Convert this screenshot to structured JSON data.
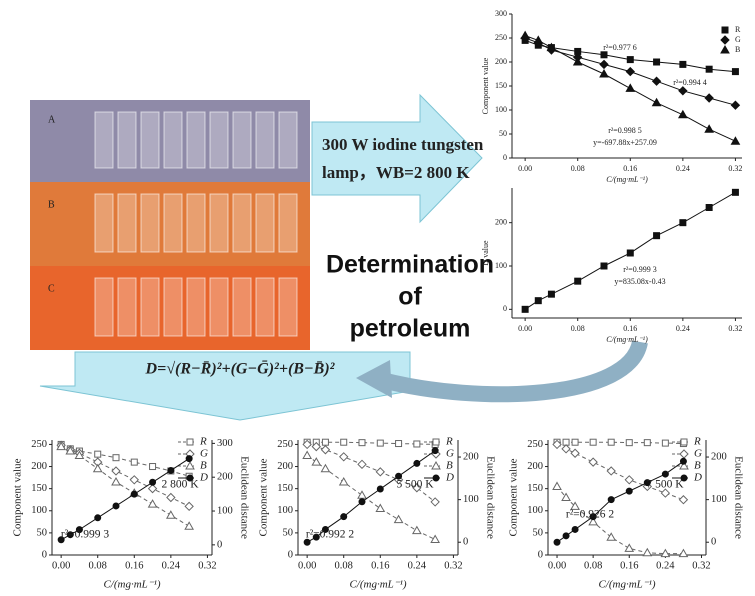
{
  "photo": {
    "labels": [
      "A",
      "B",
      "C"
    ]
  },
  "arrow_text": [
    "300 W iodine tungsten",
    "lamp，WB=2 800 K"
  ],
  "title_lines": [
    "Determination",
    "of",
    "petroleum"
  ],
  "formula": "D=√(R−R̄)²+(G−Ḡ)²+(B−B̄)²",
  "chart_data": [
    {
      "type": "scatter",
      "x_label": "C/(mg·mL⁻¹)",
      "y_label": "Component value",
      "x": [
        0,
        0.02,
        0.04,
        0.08,
        0.12,
        0.16,
        0.2,
        0.24,
        0.28,
        0.32
      ],
      "xlim": [
        -0.02,
        0.33
      ],
      "xticks": [
        {
          "value": 0,
          "label": "0.00"
        },
        0.08,
        0.16,
        0.24,
        0.32
      ],
      "ylim": [
        0,
        300
      ],
      "yticks": [
        0,
        50,
        100,
        150,
        200,
        250,
        300
      ],
      "series": [
        {
          "name": "R",
          "color": "#111",
          "marker": "square",
          "values": [
            245,
            235,
            230,
            222,
            215,
            205,
            200,
            195,
            185,
            180
          ]
        },
        {
          "name": "G",
          "color": "#111",
          "marker": "diamond",
          "values": [
            250,
            240,
            225,
            210,
            195,
            180,
            160,
            140,
            125,
            110
          ]
        },
        {
          "name": "B",
          "color": "#111",
          "marker": "triangle",
          "values": [
            255,
            245,
            230,
            200,
            175,
            145,
            115,
            90,
            60,
            35
          ]
        }
      ],
      "annotations": [
        "r²=0.977 6",
        "r²=0.994 4",
        "r²=0.998 5",
        "y=-697.88x+257.09"
      ]
    },
    {
      "type": "scatter",
      "x_label": "C/(mg·mL⁻¹)",
      "y_label": "D value",
      "x": [
        0,
        0.02,
        0.04,
        0.08,
        0.12,
        0.16,
        0.2,
        0.24,
        0.28,
        0.32
      ],
      "xlim": [
        -0.02,
        0.33
      ],
      "xticks": [
        {
          "value": 0,
          "label": "0.00"
        },
        0.08,
        0.16,
        0.24,
        0.32
      ],
      "ylim": [
        -20,
        280
      ],
      "yticks": [
        0,
        100,
        200
      ],
      "series": [
        {
          "name": "D",
          "color": "#111",
          "marker": "square",
          "values": [
            0,
            20,
            35,
            65,
            100,
            130,
            170,
            200,
            235,
            270
          ]
        }
      ],
      "annotations": [
        "r²=0.999 3",
        "y=835.08x-0.43"
      ]
    },
    {
      "type": "scatter",
      "x_label": "C/(mg·mL⁻¹)",
      "y_label": "Component value",
      "y2_label": "Euclidean distance",
      "x": [
        0,
        0.02,
        0.04,
        0.08,
        0.12,
        0.16,
        0.2,
        0.24,
        0.28
      ],
      "xlim": [
        -0.02,
        0.33
      ],
      "xticks": [
        {
          "value": 0,
          "label": "0.00"
        },
        0.08,
        0.16,
        0.24,
        0.32
      ],
      "ylim": [
        0,
        260
      ],
      "yticks": [
        0,
        50,
        100,
        150,
        200,
        250
      ],
      "y2lim": [
        -30,
        310
      ],
      "y2ticks": [
        0,
        100,
        200,
        300
      ],
      "series": [
        {
          "name": "R",
          "color": "#666",
          "marker": "square",
          "dashed": true,
          "values": [
            250,
            240,
            235,
            228,
            220,
            210,
            200,
            190,
            178
          ]
        },
        {
          "name": "G",
          "color": "#666",
          "marker": "diamond",
          "dashed": true,
          "values": [
            248,
            238,
            230,
            210,
            190,
            170,
            150,
            130,
            110
          ]
        },
        {
          "name": "B",
          "color": "#666",
          "marker": "triangle",
          "dashed": true,
          "values": [
            245,
            235,
            225,
            195,
            165,
            140,
            115,
            90,
            65
          ]
        },
        {
          "name": "D",
          "color": "#111",
          "marker": "circle",
          "axis": "y2",
          "values": [
            15,
            30,
            45,
            80,
            115,
            150,
            185,
            220,
            255
          ]
        }
      ],
      "annotations": [
        "2 800 K",
        "r²=0.999 3"
      ]
    },
    {
      "type": "scatter",
      "x_label": "C/(mg·mL⁻¹)",
      "y_label": "Component value",
      "y2_label": "Euclidean distance",
      "x": [
        0,
        0.02,
        0.04,
        0.08,
        0.12,
        0.16,
        0.2,
        0.24,
        0.28
      ],
      "xlim": [
        -0.02,
        0.33
      ],
      "xticks": [
        {
          "value": 0,
          "label": "0.00"
        },
        0.08,
        0.16,
        0.24,
        0.32
      ],
      "ylim": [
        0,
        260
      ],
      "yticks": [
        0,
        50,
        100,
        150,
        200,
        250
      ],
      "y2lim": [
        -30,
        240
      ],
      "y2ticks": [
        0,
        100,
        200
      ],
      "series": [
        {
          "name": "R",
          "color": "#666",
          "marker": "square",
          "dashed": true,
          "values": [
            255,
            255,
            255,
            255,
            254,
            253,
            252,
            251,
            250
          ]
        },
        {
          "name": "G",
          "color": "#666",
          "marker": "diamond",
          "dashed": true,
          "values": [
            250,
            245,
            238,
            222,
            205,
            188,
            170,
            152,
            120
          ]
        },
        {
          "name": "B",
          "color": "#666",
          "marker": "triangle",
          "dashed": true,
          "values": [
            225,
            210,
            195,
            165,
            135,
            105,
            80,
            55,
            35
          ]
        },
        {
          "name": "D",
          "color": "#111",
          "marker": "circle",
          "axis": "y2",
          "values": [
            0,
            12,
            30,
            60,
            95,
            125,
            155,
            185,
            215
          ]
        }
      ],
      "annotations": [
        "5 500 K",
        "r²=0.992 2"
      ]
    },
    {
      "type": "scatter",
      "x_label": "C/(mg·mL⁻¹)",
      "y_label": "Component value",
      "y2_label": "Euclidean distance",
      "x": [
        0,
        0.02,
        0.04,
        0.08,
        0.12,
        0.16,
        0.2,
        0.24,
        0.28
      ],
      "xlim": [
        -0.02,
        0.33
      ],
      "xticks": [
        {
          "value": 0,
          "label": "0.00"
        },
        0.08,
        0.16,
        0.24,
        0.32
      ],
      "ylim": [
        0,
        260
      ],
      "yticks": [
        0,
        50,
        100,
        150,
        200,
        250
      ],
      "y2lim": [
        -30,
        240
      ],
      "y2ticks": [
        0,
        100,
        200
      ],
      "series": [
        {
          "name": "R",
          "color": "#666",
          "marker": "square",
          "dashed": true,
          "values": [
            255,
            255,
            255,
            255,
            255,
            254,
            254,
            253,
            252
          ]
        },
        {
          "name": "G",
          "color": "#666",
          "marker": "diamond",
          "dashed": true,
          "values": [
            250,
            240,
            230,
            210,
            190,
            170,
            155,
            140,
            125
          ]
        },
        {
          "name": "B",
          "color": "#666",
          "marker": "triangle",
          "dashed": true,
          "values": [
            155,
            130,
            110,
            75,
            40,
            15,
            5,
            3,
            3
          ]
        },
        {
          "name": "D",
          "color": "#111",
          "marker": "circle",
          "axis": "y2",
          "values": [
            0,
            15,
            30,
            60,
            100,
            120,
            140,
            160,
            190
          ]
        }
      ],
      "annotations": [
        "7 500 K",
        "r²=0.926 2"
      ]
    }
  ]
}
